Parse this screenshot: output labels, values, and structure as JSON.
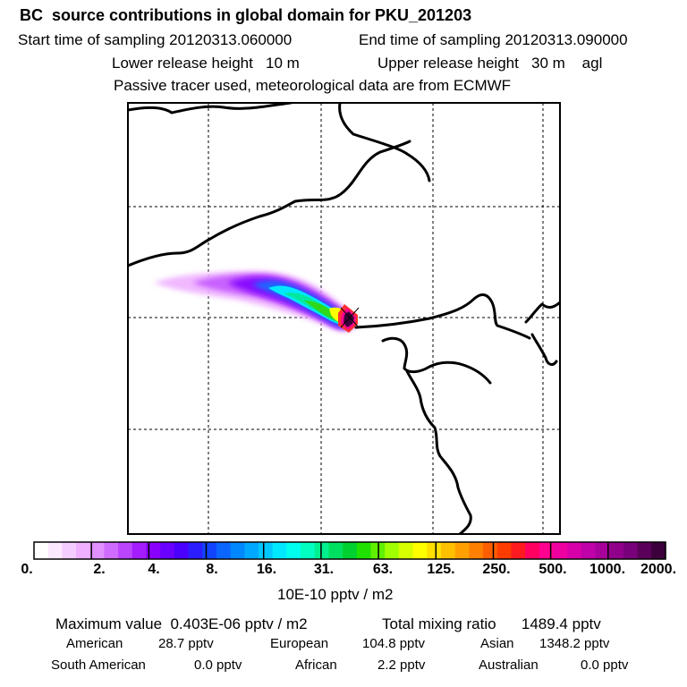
{
  "header": {
    "title": "BC  source contributions in global domain for PKU_201203",
    "start_time": "Start time of sampling 20120313.060000",
    "end_time": "End time of sampling 20120313.090000",
    "lower_height": "Lower release height   10 m",
    "upper_height": "Upper release height   30 m    agl",
    "tracer_note": "Passive tracer used, meteorological data are from ECMWF"
  },
  "colorbar": {
    "ticks": [
      "0.",
      "2.",
      "4.",
      "8.",
      "16.",
      "31.",
      "63.",
      "125.",
      "250.",
      "500.",
      "1000.",
      "2000."
    ],
    "unit": "10E-10 pptv / m2",
    "colors": [
      "#ffffff",
      "#fbe8ff",
      "#f5ccff",
      "#eeb0ff",
      "#e090ff",
      "#cf6cff",
      "#bb44ff",
      "#a31dff",
      "#8a00ff",
      "#6a00ff",
      "#4b00ff",
      "#2c1dff",
      "#1144ff",
      "#0a66ff",
      "#0088ff",
      "#00a8ff",
      "#00c8ff",
      "#00e8ff",
      "#00ffee",
      "#00ffc0",
      "#00f090",
      "#00e060",
      "#00d030",
      "#20e000",
      "#60f000",
      "#a0ff00",
      "#d8ff00",
      "#ffff00",
      "#ffe000",
      "#ffc000",
      "#ffa000",
      "#ff8000",
      "#ff5e00",
      "#ff3c00",
      "#ff1a20",
      "#ff0060",
      "#ff0090",
      "#ee00a0",
      "#d800a8",
      "#c000a8",
      "#a8009a",
      "#90008a",
      "#78007a",
      "#5a005a",
      "#3c003c"
    ]
  },
  "stats": {
    "max_label": "Maximum value  0.403E-06 pptv / m2",
    "total_label": "Total mixing ratio      1489.4 pptv",
    "regions": [
      {
        "name": "American",
        "value": "28.7 pptv"
      },
      {
        "name": "European",
        "value": "104.8 pptv"
      },
      {
        "name": "Asian",
        "value": "1348.2 pptv"
      },
      {
        "name": "South American",
        "value": "0.0 pptv"
      },
      {
        "name": "African",
        "value": "2.2 pptv"
      },
      {
        "name": "Australian",
        "value": "0.0 pptv"
      }
    ]
  }
}
